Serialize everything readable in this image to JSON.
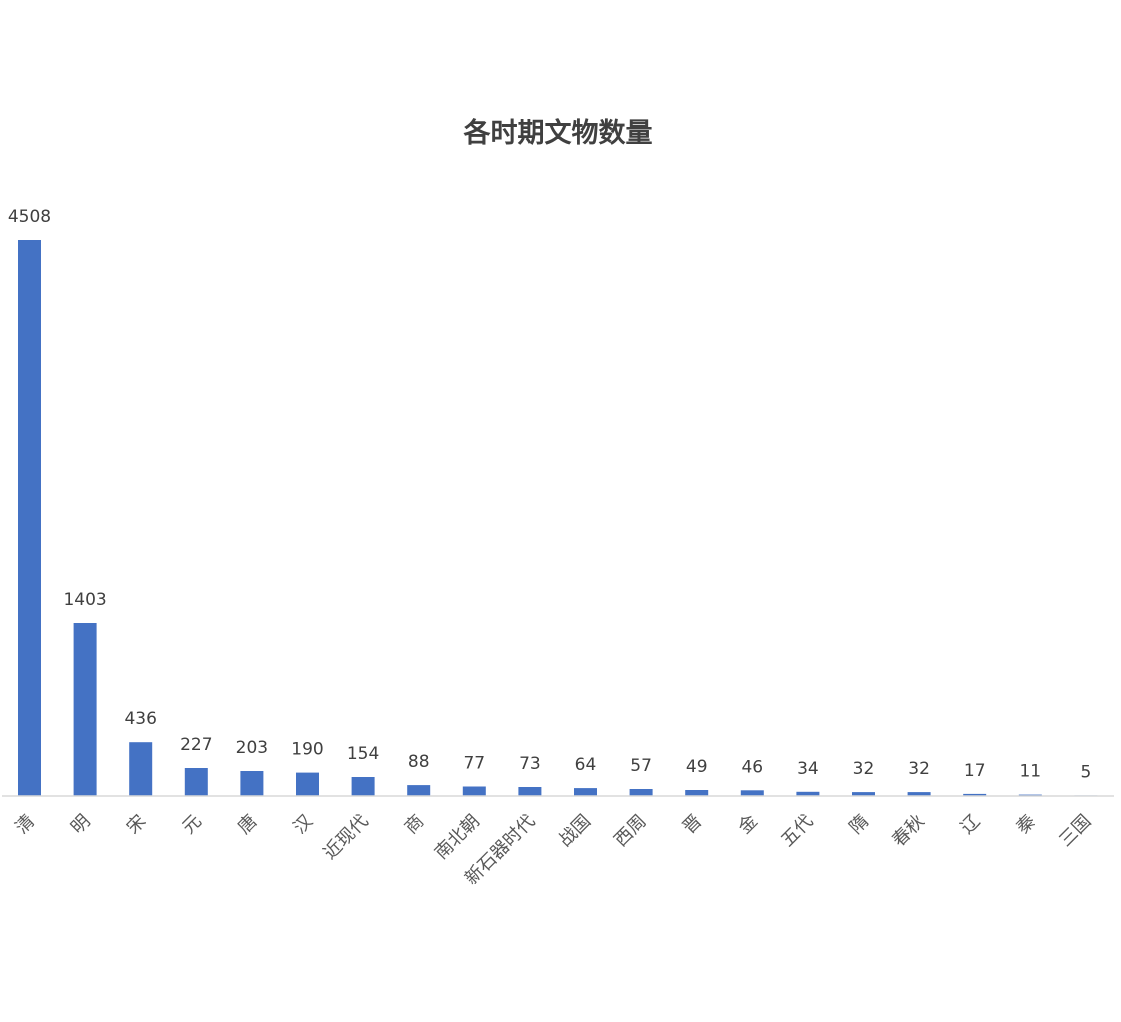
{
  "chart_data": {
    "type": "bar",
    "title": "各时期文物数量",
    "xlabel": "",
    "ylabel": "",
    "categories": [
      "清",
      "明",
      "宋",
      "元",
      "唐",
      "汉",
      "近现代",
      "商",
      "南北朝",
      "新石器时代",
      "战国",
      "西周",
      "晋",
      "金",
      "五代",
      "隋",
      "春秋",
      "辽",
      "秦",
      "三国"
    ],
    "values": [
      4508,
      1403,
      436,
      227,
      203,
      190,
      154,
      88,
      77,
      73,
      64,
      57,
      49,
      46,
      34,
      32,
      32,
      17,
      11,
      5
    ],
    "ylim": [
      0,
      4508
    ],
    "grid": false,
    "legend": "none",
    "data_labels": true,
    "bar_color": "#4472C4"
  }
}
